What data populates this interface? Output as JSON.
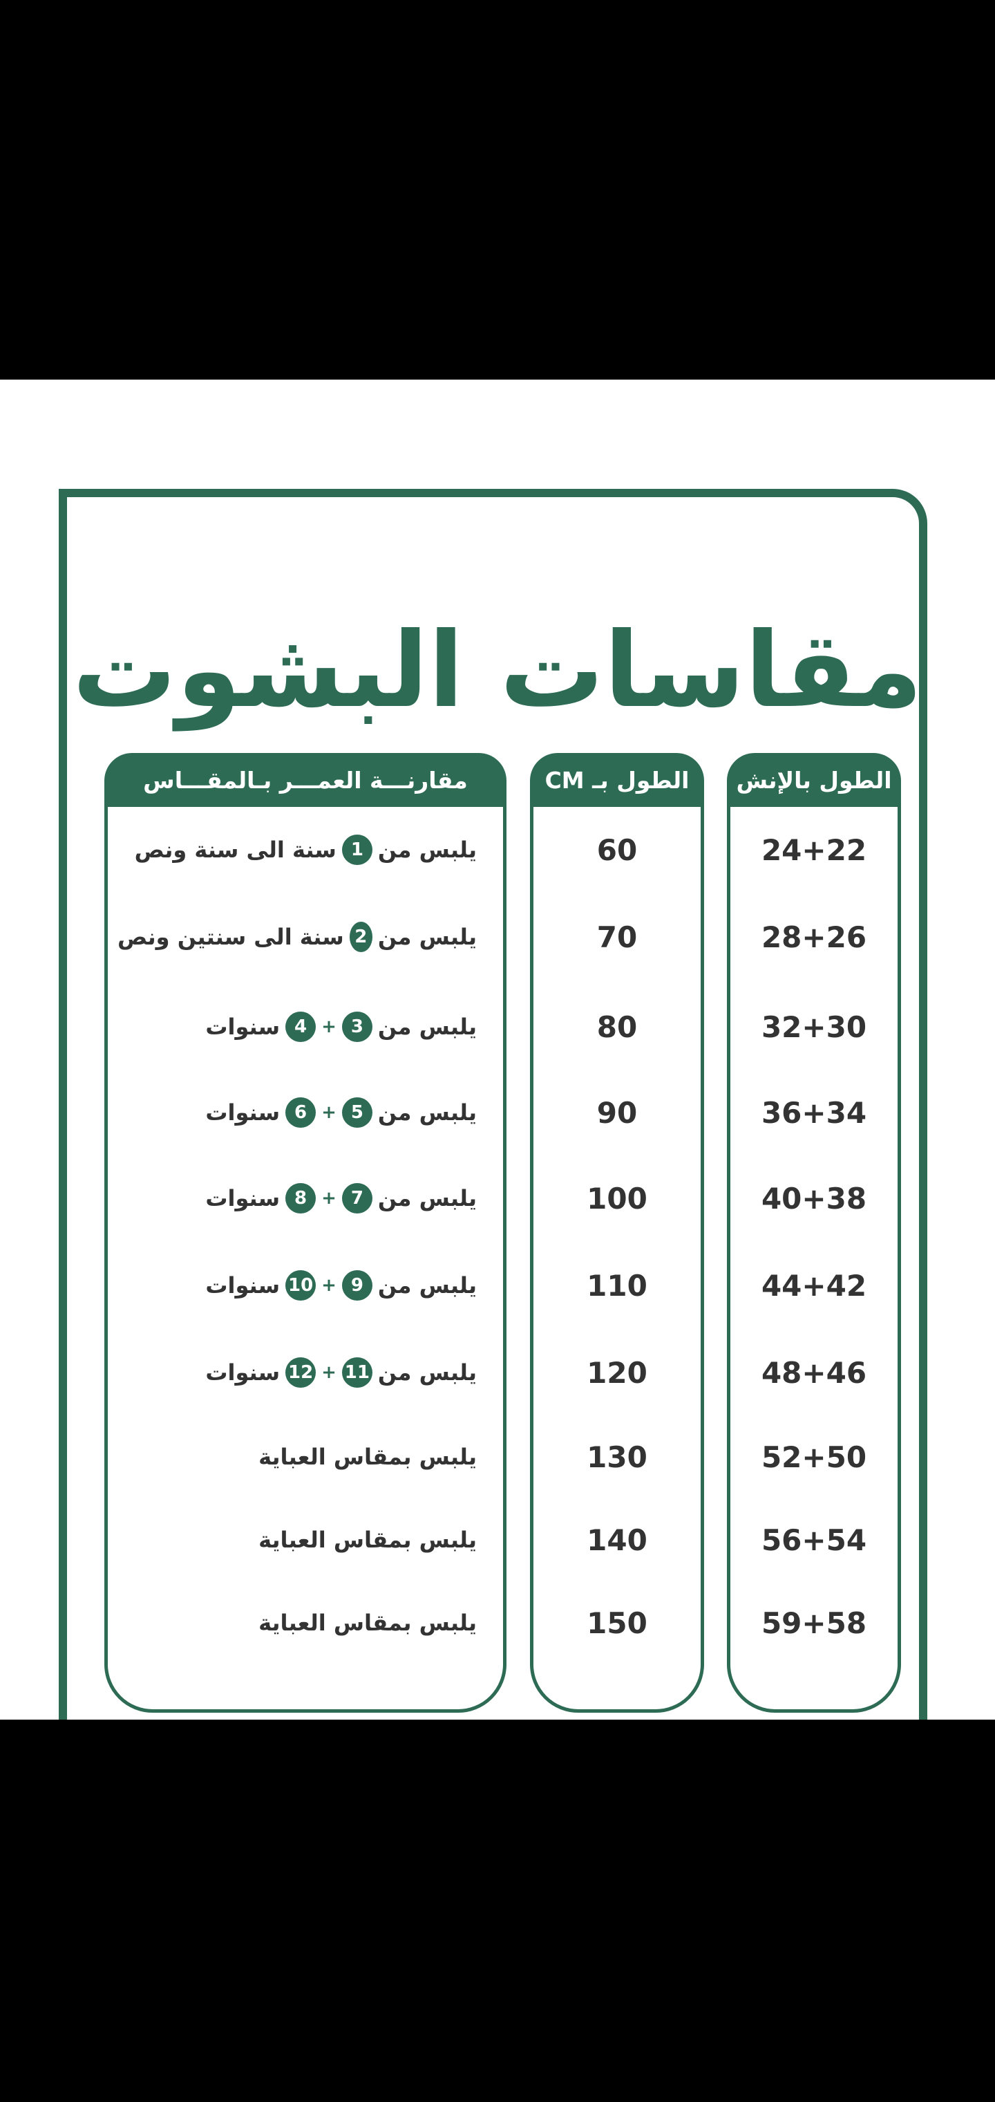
{
  "title": "مقاسات البشوت",
  "headers": {
    "inch": "الطول بالإنش",
    "cm": "الطول بـ CM",
    "age": "مقارنـــة العمـــر بـالمقـــاس"
  },
  "rows": [
    {
      "inch": "24+22",
      "cm": "60",
      "age": [
        {
          "text": "يلبس من"
        },
        {
          "circle": "1"
        },
        {
          "text": "سنة الى سنة ونص"
        }
      ]
    },
    {
      "inch": "28+26",
      "cm": "70",
      "age": [
        {
          "text": "يلبس من"
        },
        {
          "circle": "2"
        },
        {
          "text": "سنة الى سنتين ونص"
        }
      ]
    },
    {
      "inch": "32+30",
      "cm": "80",
      "age": [
        {
          "text": "يلبس من"
        },
        {
          "circle": "3"
        },
        {
          "text": "+"
        },
        {
          "circle": "4"
        },
        {
          "text": "سنوات"
        }
      ]
    },
    {
      "inch": "36+34",
      "cm": "90",
      "age": [
        {
          "text": "يلبس من"
        },
        {
          "circle": "5"
        },
        {
          "text": "+"
        },
        {
          "circle": "6"
        },
        {
          "text": "سنوات"
        }
      ]
    },
    {
      "inch": "40+38",
      "cm": "100",
      "age": [
        {
          "text": "يلبس من"
        },
        {
          "circle": "7"
        },
        {
          "text": "+"
        },
        {
          "circle": "8"
        },
        {
          "text": "سنوات"
        }
      ]
    },
    {
      "inch": "44+42",
      "cm": "110",
      "age": [
        {
          "text": "يلبس من"
        },
        {
          "circle": "9"
        },
        {
          "text": "+"
        },
        {
          "circle": "10"
        },
        {
          "text": "سنوات"
        }
      ]
    },
    {
      "inch": "48+46",
      "cm": "120",
      "age": [
        {
          "text": "يلبس من"
        },
        {
          "circle": "11"
        },
        {
          "text": "+"
        },
        {
          "circle": "12"
        },
        {
          "text": "سنوات"
        }
      ]
    },
    {
      "inch": "52+50",
      "cm": "130",
      "age": [
        {
          "text": "يلبس بمقاس العباية"
        }
      ]
    },
    {
      "inch": "56+54",
      "cm": "140",
      "age": [
        {
          "text": "يلبس بمقاس العباية"
        }
      ]
    },
    {
      "inch": "59+58",
      "cm": "150",
      "age": [
        {
          "text": "يلبس بمقاس العباية"
        }
      ]
    }
  ]
}
